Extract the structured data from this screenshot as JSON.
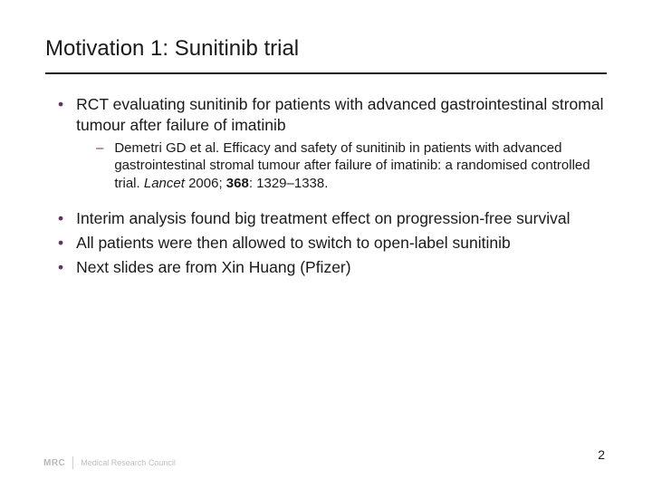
{
  "title": "Motivation 1: Sunitinib trial",
  "bullets": {
    "b1": "RCT evaluating sunitinib for patients with advanced gastrointestinal stromal tumour after failure of imatinib",
    "b1_sub_a": "Demetri GD et al. Efficacy and safety of sunitinib in patients with advanced gastrointestinal stromal tumour after failure of imatinib: a randomised controlled trial. ",
    "b1_sub_journal": "Lancet",
    "b1_sub_b": " 2006; ",
    "b1_sub_vol": "368",
    "b1_sub_c": ": 1329–1338.",
    "b2": "Interim analysis found big treatment effect on progression-free survival",
    "b3": "All patients were then allowed to switch to open-label sunitinib",
    "b4": "Next slides are from Xin Huang (Pfizer)"
  },
  "page_number": "2",
  "footer": {
    "mrc": "MRC",
    "label": "Medical Research Council"
  },
  "colors": {
    "bullet_marker": "#6b2e5f",
    "text": "#1a1a1a",
    "rule": "#1a1a1a",
    "footer_text": "#bfbfbf"
  }
}
